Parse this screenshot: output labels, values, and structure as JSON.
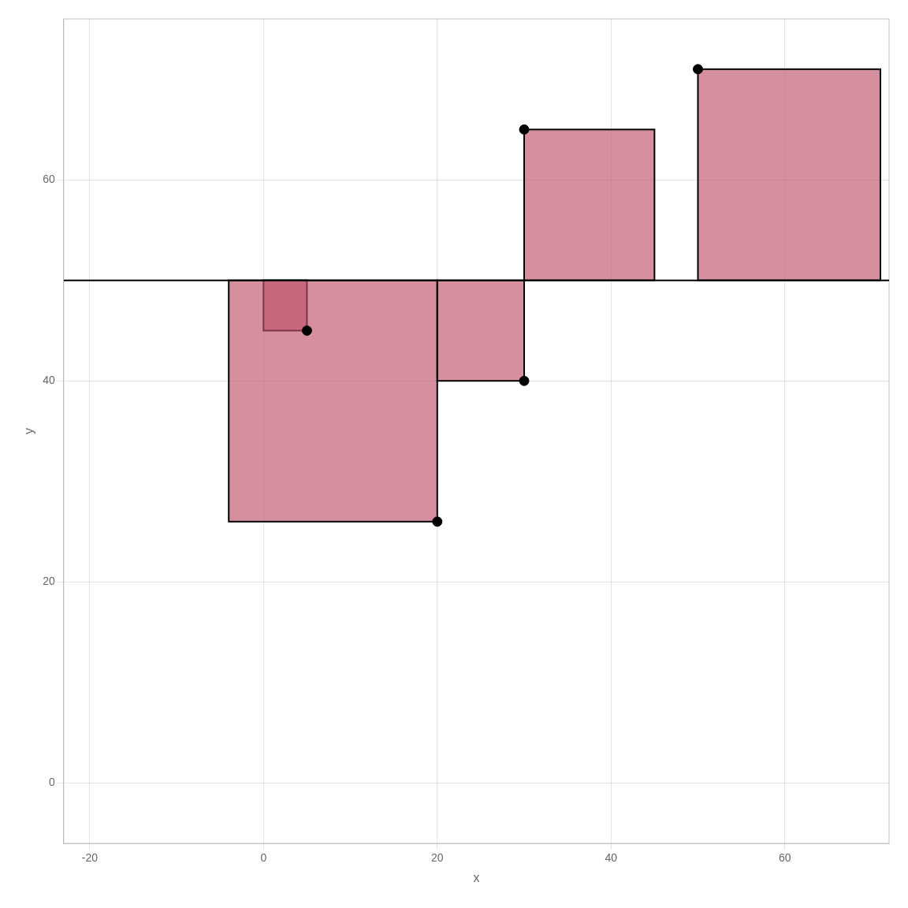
{
  "chart_data": {
    "type": "scatter",
    "xlabel": "x",
    "ylabel": "y",
    "xlim": [
      -23,
      72
    ],
    "xticks": [
      -20,
      0,
      20,
      40,
      60
    ],
    "ylim": [
      -6,
      76
    ],
    "yticks": [
      0,
      20,
      40,
      60
    ],
    "grid": true,
    "series": [
      {
        "type": "squares",
        "color": "#c0536a",
        "x_ranges": [
          [
            0,
            5
          ],
          [
            -4,
            20
          ],
          [
            20,
            30
          ],
          [
            30,
            45
          ],
          [
            50,
            71
          ]
        ],
        "y_ranges": [
          [
            45,
            50
          ],
          [
            26,
            50
          ],
          [
            40,
            50
          ],
          [
            50,
            65
          ],
          [
            50,
            71
          ]
        ]
      },
      {
        "type": "hline",
        "color": "black",
        "values": [
          50
        ]
      },
      {
        "type": "scatter",
        "color": "black",
        "x": [
          5,
          20,
          30,
          30,
          50
        ],
        "values": [
          45,
          26,
          40,
          65,
          71
        ]
      }
    ]
  }
}
